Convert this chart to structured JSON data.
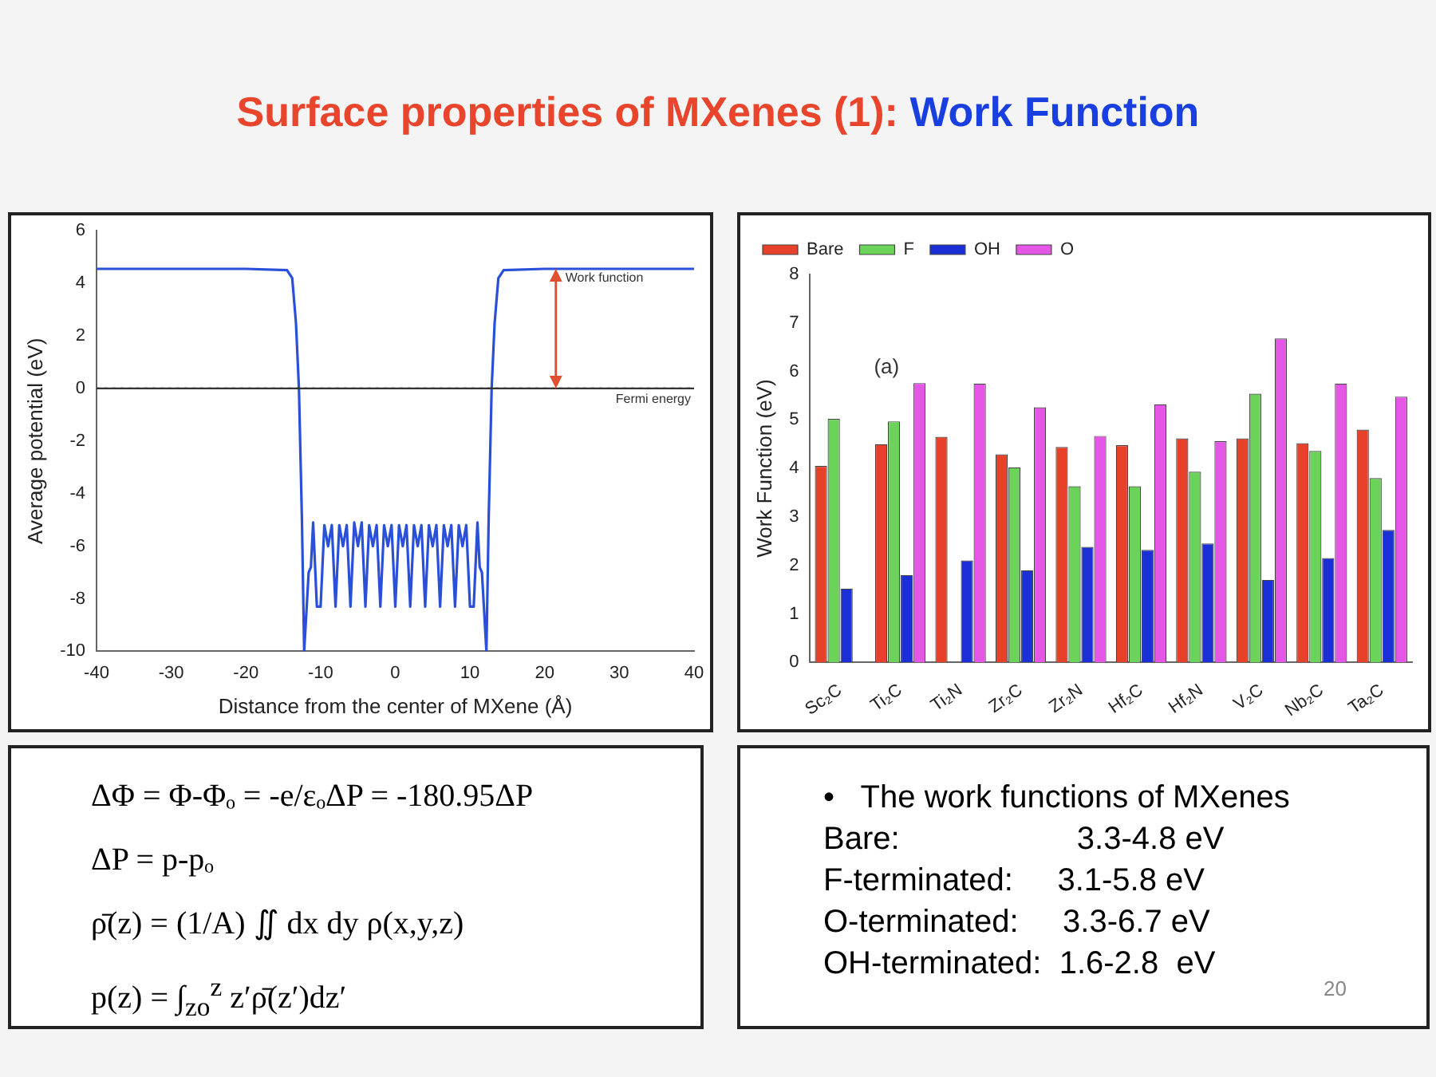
{
  "chart_data": [
    {
      "type": "other",
      "annotations": [
        "Surface properties of MXenes (1): ",
        "Work Function"
      ],
      "colors": [
        "#e8452c",
        "#1a3fe0"
      ]
    },
    {
      "type": "line",
      "xlabel": "Distance from the center of MXene (Å)",
      "ylabel": "Average potential (eV)",
      "xlim": [
        -40,
        40
      ],
      "xticks": [
        -40,
        -30,
        -20,
        -10,
        0,
        10,
        20,
        30,
        40
      ],
      "ylim": [
        -10,
        6
      ],
      "yticks": [
        -10,
        -8,
        -6,
        -4,
        -2,
        0,
        2,
        4,
        6
      ],
      "grid": false,
      "legend": false,
      "marker": "none",
      "line_style": "solid",
      "series": [
        {
          "color": "#2a4fd8",
          "x": [
            -40,
            -20,
            -14.5,
            -13.8,
            -13.3,
            -12.9,
            -12.5,
            -12.2,
            -11.9,
            -11.6,
            -11.3,
            -11,
            -10.5,
            -10,
            -9.5,
            -9,
            -8.5,
            -8,
            -7.5,
            -7,
            -6.5,
            -6,
            -5.5,
            -5,
            -4.5,
            -4,
            -3.5,
            -3,
            -2.5,
            -2,
            -1.5,
            -1,
            -0.5,
            0,
            0.5,
            1,
            1.5,
            2,
            2.5,
            3,
            3.5,
            4,
            4.5,
            5,
            5.5,
            6,
            6.5,
            7,
            7.5,
            8,
            8.5,
            9,
            9.5,
            10,
            10.5,
            11,
            11.3,
            11.6,
            11.9,
            12.2,
            12.5,
            12.9,
            13.3,
            13.8,
            14.5,
            20,
            40
          ],
          "values": [
            4.55,
            4.55,
            4.5,
            4.2,
            2.5,
            0,
            -5,
            -10,
            -8.5,
            -7,
            -6.8,
            -5.1,
            -8.3,
            -8.3,
            -5.2,
            -6,
            -5.2,
            -8.3,
            -5.2,
            -6,
            -5.2,
            -8.3,
            -5.1,
            -6,
            -5.1,
            -8.3,
            -5.2,
            -6,
            -5.2,
            -8.3,
            -5.2,
            -6,
            -5.2,
            -8.3,
            -5.2,
            -6,
            -5.2,
            -8.3,
            -5.2,
            -6,
            -5.2,
            -8.3,
            -5.2,
            -6,
            -5.2,
            -8.3,
            -5.2,
            -6,
            -5.2,
            -8.3,
            -5.2,
            -6,
            -5.2,
            -8.3,
            -8.3,
            -5.1,
            -6.8,
            -7,
            -8.5,
            -10,
            -5,
            0,
            2.5,
            4.2,
            4.5,
            4.55,
            4.55
          ]
        }
      ],
      "ref_lines": [
        {
          "axis": "y",
          "value": 0,
          "label": "Fermi energy",
          "color": "#333333",
          "line_style": "dotted"
        }
      ],
      "annotations": [
        {
          "text": "Work function",
          "x": 21.5,
          "y": 4.55
        }
      ]
    },
    {
      "type": "bar",
      "ylabel": "Work Function (eV)",
      "categories": [
        "Sc₂C",
        "Ti₂C",
        "Ti₂N",
        "Zr₂C",
        "Zr₂N",
        "Hf₂C",
        "Hf₂N",
        "V₂C",
        "Nb₂C",
        "Ta₂C"
      ],
      "ylim": [
        0,
        8
      ],
      "yticks": [
        0,
        1,
        2,
        3,
        4,
        5,
        6,
        7,
        8
      ],
      "grid": false,
      "legend": "top left",
      "series": [
        {
          "name": "Bare",
          "color": "#e8412a",
          "values": [
            4.05,
            4.5,
            4.65,
            4.29,
            4.44,
            4.48,
            4.62,
            4.62,
            4.52,
            4.8
          ]
        },
        {
          "name": "F",
          "color": "#6cd35a",
          "values": [
            5.02,
            4.97,
            null,
            4.02,
            3.63,
            3.63,
            3.93,
            5.54,
            4.36,
            3.8
          ]
        },
        {
          "name": "OH",
          "color": "#1a2fd6",
          "values": [
            1.52,
            1.8,
            2.1,
            1.9,
            2.38,
            2.32,
            2.45,
            1.7,
            2.15,
            2.73
          ]
        },
        {
          "name": "O",
          "color": "#e656e6",
          "values": [
            null,
            5.76,
            5.75,
            5.26,
            4.67,
            5.32,
            4.56,
            6.68,
            5.75,
            5.48
          ]
        }
      ],
      "annotations": [
        "(a)"
      ]
    },
    {
      "type": "other",
      "annotations": [
        "ΔΦ = Φ-Φₒ = -e/εₒΔP = -180.95ΔP",
        "ΔP = p-pₒ",
        "ρ̄(z) = (1/A) ∬ dx dy ρ(x,y,z)",
        "p(z) = ∫$_{zo}$$^{z}$ z′ρ̄(z′)dz′"
      ]
    },
    {
      "type": "other",
      "annotations": [
        "•   The work functions of MXenes",
        "Bare:                    3.3-4.8 eV",
        "F-terminated:     3.1-5.8 eV",
        "O-terminated:     3.3-6.7 eV",
        "OH-terminated:  1.6-2.8  eV",
        "20"
      ]
    }
  ]
}
